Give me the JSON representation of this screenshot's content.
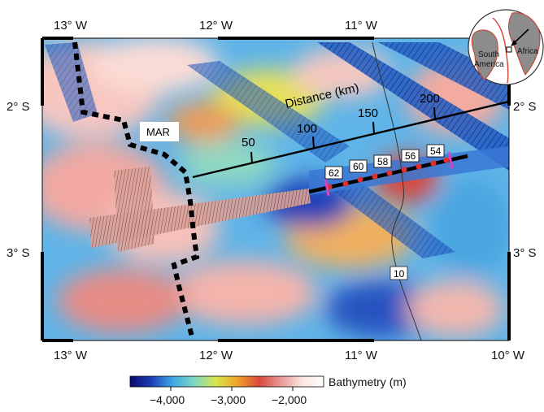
{
  "map": {
    "top_axis": [
      "13° W",
      "12° W",
      "11° W"
    ],
    "bottom_axis": [
      "13° W",
      "12° W",
      "11° W",
      "10° W"
    ],
    "left_axis": [
      "2° S",
      "3° S"
    ],
    "right_axis": [
      "2° S",
      "3° S"
    ],
    "ridge_label": "MAR",
    "distance_title": "Distance (km)",
    "distance_ticks": [
      "50",
      "100",
      "150",
      "200"
    ],
    "contour_label": "10",
    "site_labels": [
      "62",
      "60",
      "58",
      "56",
      "54"
    ]
  },
  "colorbar": {
    "title": "Bathymetry (m)",
    "ticks": [
      "−4,000",
      "−3,000",
      "−2,000"
    ],
    "stops": [
      "#0a0a6e",
      "#1d3fb8",
      "#3fa8e6",
      "#7fd8c0",
      "#d8e64a",
      "#f0a02a",
      "#d8483c",
      "#e89898",
      "#fbe4e0",
      "#ffffff"
    ]
  },
  "inset": {
    "labels": [
      "South",
      "America",
      "Africa"
    ]
  },
  "colors": {
    "ridge": "#000000",
    "profile": "#000000",
    "sites": "#e0302c",
    "site_bounds": "#e040c0"
  }
}
